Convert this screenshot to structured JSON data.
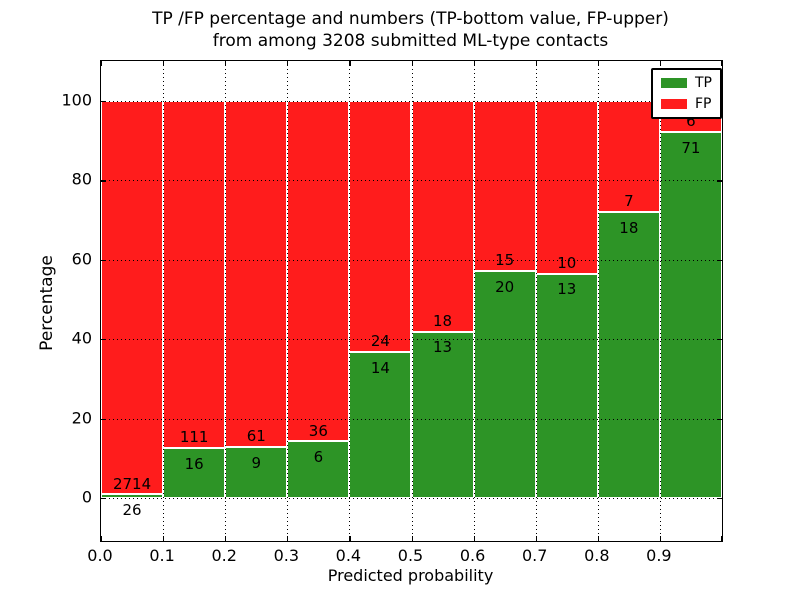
{
  "figure": {
    "title_line1": "TP /FP percentage and numbers (TP-bottom value, FP-upper)",
    "title_line2": "from among 3208 submitted ML-type contacts",
    "xlabel": "Predicted probability",
    "ylabel": "Percentage"
  },
  "colors": {
    "tp_green": "#2d9426",
    "fp_red": "#ff1c1c",
    "background": "#ffffff",
    "text": "#000000"
  },
  "legend": {
    "position": "upper right",
    "items": [
      {
        "label": "TP",
        "color": "#2d9426"
      },
      {
        "label": "FP",
        "color": "#ff1c1c"
      }
    ]
  },
  "chart_data": {
    "type": "bar",
    "stacked": true,
    "normalized_to_percent": true,
    "title": "TP /FP percentage and numbers (TP-bottom value, FP-upper)\nfrom among 3208 submitted ML-type contacts",
    "xlabel": "Predicted probability",
    "ylabel": "Percentage",
    "categories": [
      0.0,
      0.1,
      0.2,
      0.3,
      0.4,
      0.5,
      0.6,
      0.7,
      0.8,
      0.9
    ],
    "bin_width": 0.1,
    "x_tick_labels": [
      "0.0",
      "0.1",
      "0.2",
      "0.3",
      "0.4",
      "0.5",
      "0.6",
      "0.7",
      "0.8",
      "0.9"
    ],
    "y_ticks": [
      0,
      20,
      40,
      60,
      80,
      100
    ],
    "xlim": [
      0.0,
      1.0
    ],
    "ylim": [
      -11,
      110
    ],
    "grid": "dotted black, both axes, drawn over bars",
    "legend_position": "upper right",
    "series": [
      {
        "name": "TP",
        "color": "#2d9426",
        "values": [
          26,
          16,
          9,
          6,
          14,
          13,
          20,
          13,
          18,
          71
        ]
      },
      {
        "name": "FP",
        "color": "#ff1c1c",
        "values": [
          2714,
          111,
          61,
          36,
          24,
          18,
          15,
          10,
          7,
          6
        ]
      }
    ],
    "total_contacts": 3208
  }
}
